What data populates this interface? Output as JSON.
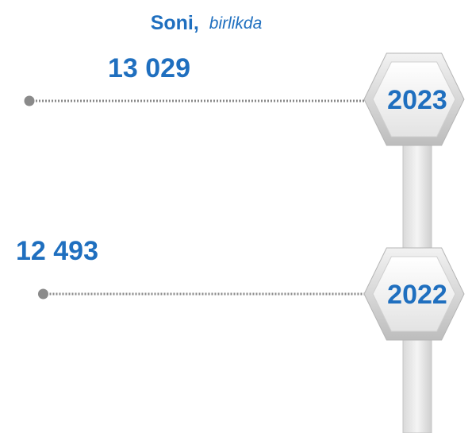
{
  "chart_data": {
    "type": "timeline",
    "title": "Soni,",
    "subtitle": "birlikda",
    "categories": [
      "2023",
      "2022"
    ],
    "values": [
      13029,
      12493
    ],
    "value_labels": [
      "13 029",
      "12 493"
    ],
    "color": "#1f6fbf"
  }
}
